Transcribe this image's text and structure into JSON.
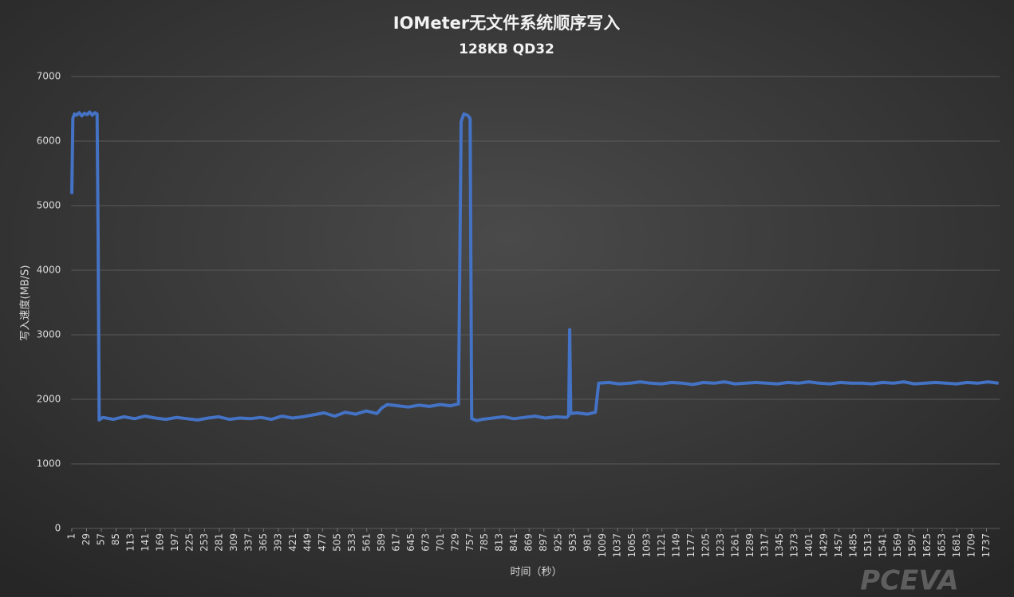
{
  "chart_data": {
    "type": "line",
    "title": "IOMeter无文件系统顺序写入",
    "subtitle": "128KB QD32",
    "y_label": "写入速度(MB/S)",
    "x_label": "时间（秒）",
    "watermark": "PCEVA",
    "xlim": [
      0,
      1762
    ],
    "xticks": [
      1,
      29,
      57,
      85,
      113,
      141,
      169,
      197,
      225,
      253,
      281,
      309,
      337,
      365,
      393,
      421,
      449,
      477,
      505,
      533,
      561,
      589,
      617,
      645,
      673,
      701,
      729,
      757,
      785,
      813,
      841,
      869,
      897,
      925,
      953,
      981,
      1009,
      1037,
      1065,
      1093,
      1121,
      1149,
      1177,
      1205,
      1233,
      1261,
      1289,
      1317,
      1345,
      1373,
      1401,
      1429,
      1457,
      1485,
      1513,
      1541,
      1569,
      1597,
      1625,
      1653,
      1681,
      1709,
      1737
    ],
    "ylim": [
      0,
      7000
    ],
    "yticks": [
      0,
      1000,
      2000,
      3000,
      4000,
      5000,
      6000,
      7000
    ],
    "grid": true,
    "x": [
      1,
      3,
      6,
      10,
      15,
      20,
      25,
      30,
      35,
      40,
      45,
      49,
      51,
      53,
      60,
      80,
      100,
      120,
      140,
      160,
      180,
      200,
      220,
      240,
      260,
      280,
      300,
      320,
      340,
      360,
      380,
      400,
      420,
      440,
      460,
      480,
      500,
      520,
      540,
      560,
      580,
      590,
      600,
      620,
      640,
      660,
      680,
      700,
      720,
      735,
      740,
      745,
      752,
      757,
      760,
      770,
      780,
      800,
      820,
      840,
      860,
      880,
      900,
      920,
      940,
      944,
      946,
      948,
      960,
      980,
      995,
      1001,
      1020,
      1040,
      1060,
      1080,
      1100,
      1120,
      1140,
      1160,
      1180,
      1200,
      1220,
      1240,
      1260,
      1280,
      1300,
      1320,
      1340,
      1360,
      1380,
      1400,
      1420,
      1440,
      1460,
      1480,
      1500,
      1520,
      1540,
      1560,
      1580,
      1600,
      1620,
      1640,
      1660,
      1680,
      1700,
      1720,
      1740,
      1760
    ],
    "series": [
      {
        "name": "写入速度",
        "color": "#4472c4",
        "values": [
          5180,
          6350,
          6420,
          6400,
          6440,
          6390,
          6430,
          6410,
          6450,
          6400,
          6440,
          6420,
          4500,
          1680,
          1720,
          1690,
          1730,
          1700,
          1740,
          1710,
          1690,
          1720,
          1700,
          1680,
          1710,
          1730,
          1690,
          1710,
          1700,
          1720,
          1690,
          1740,
          1710,
          1730,
          1760,
          1790,
          1740,
          1800,
          1770,
          1820,
          1780,
          1870,
          1920,
          1900,
          1880,
          1910,
          1890,
          1920,
          1900,
          1930,
          6300,
          6420,
          6400,
          6350,
          1700,
          1670,
          1690,
          1710,
          1730,
          1700,
          1720,
          1740,
          1710,
          1730,
          1720,
          1750,
          3080,
          1780,
          1790,
          1770,
          1800,
          2250,
          2260,
          2240,
          2250,
          2270,
          2250,
          2240,
          2260,
          2250,
          2230,
          2260,
          2250,
          2270,
          2240,
          2250,
          2260,
          2250,
          2240,
          2260,
          2250,
          2270,
          2250,
          2240,
          2260,
          2250,
          2250,
          2240,
          2260,
          2250,
          2270,
          2240,
          2250,
          2260,
          2250,
          2240,
          2260,
          2250,
          2270,
          2250
        ]
      }
    ]
  }
}
